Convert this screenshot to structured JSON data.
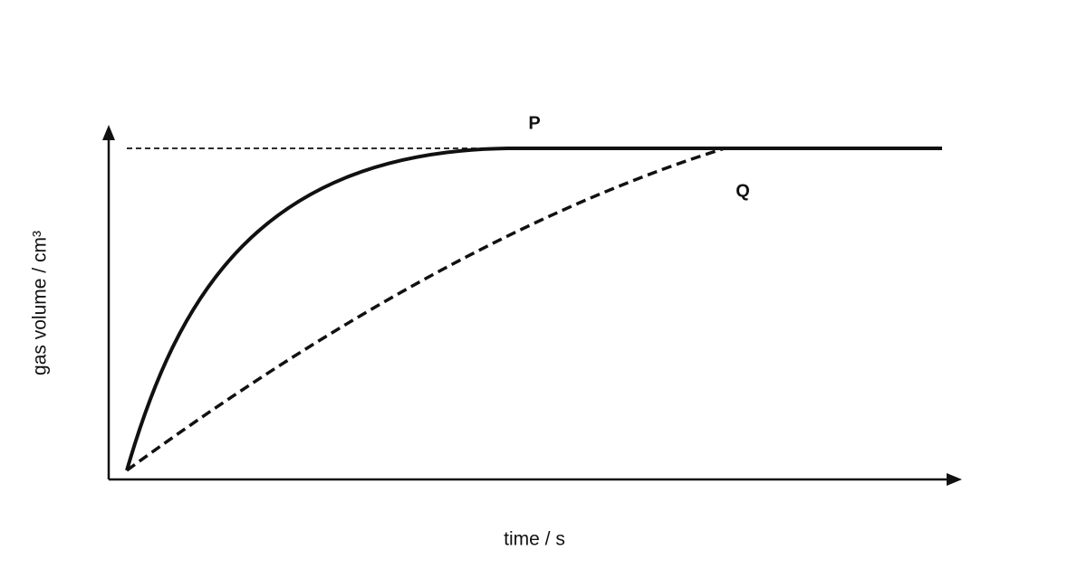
{
  "y_axis_label": "gas volume / cm³",
  "x_axis_label": "time / s",
  "curve_labels": [
    "P",
    "Q"
  ]
}
